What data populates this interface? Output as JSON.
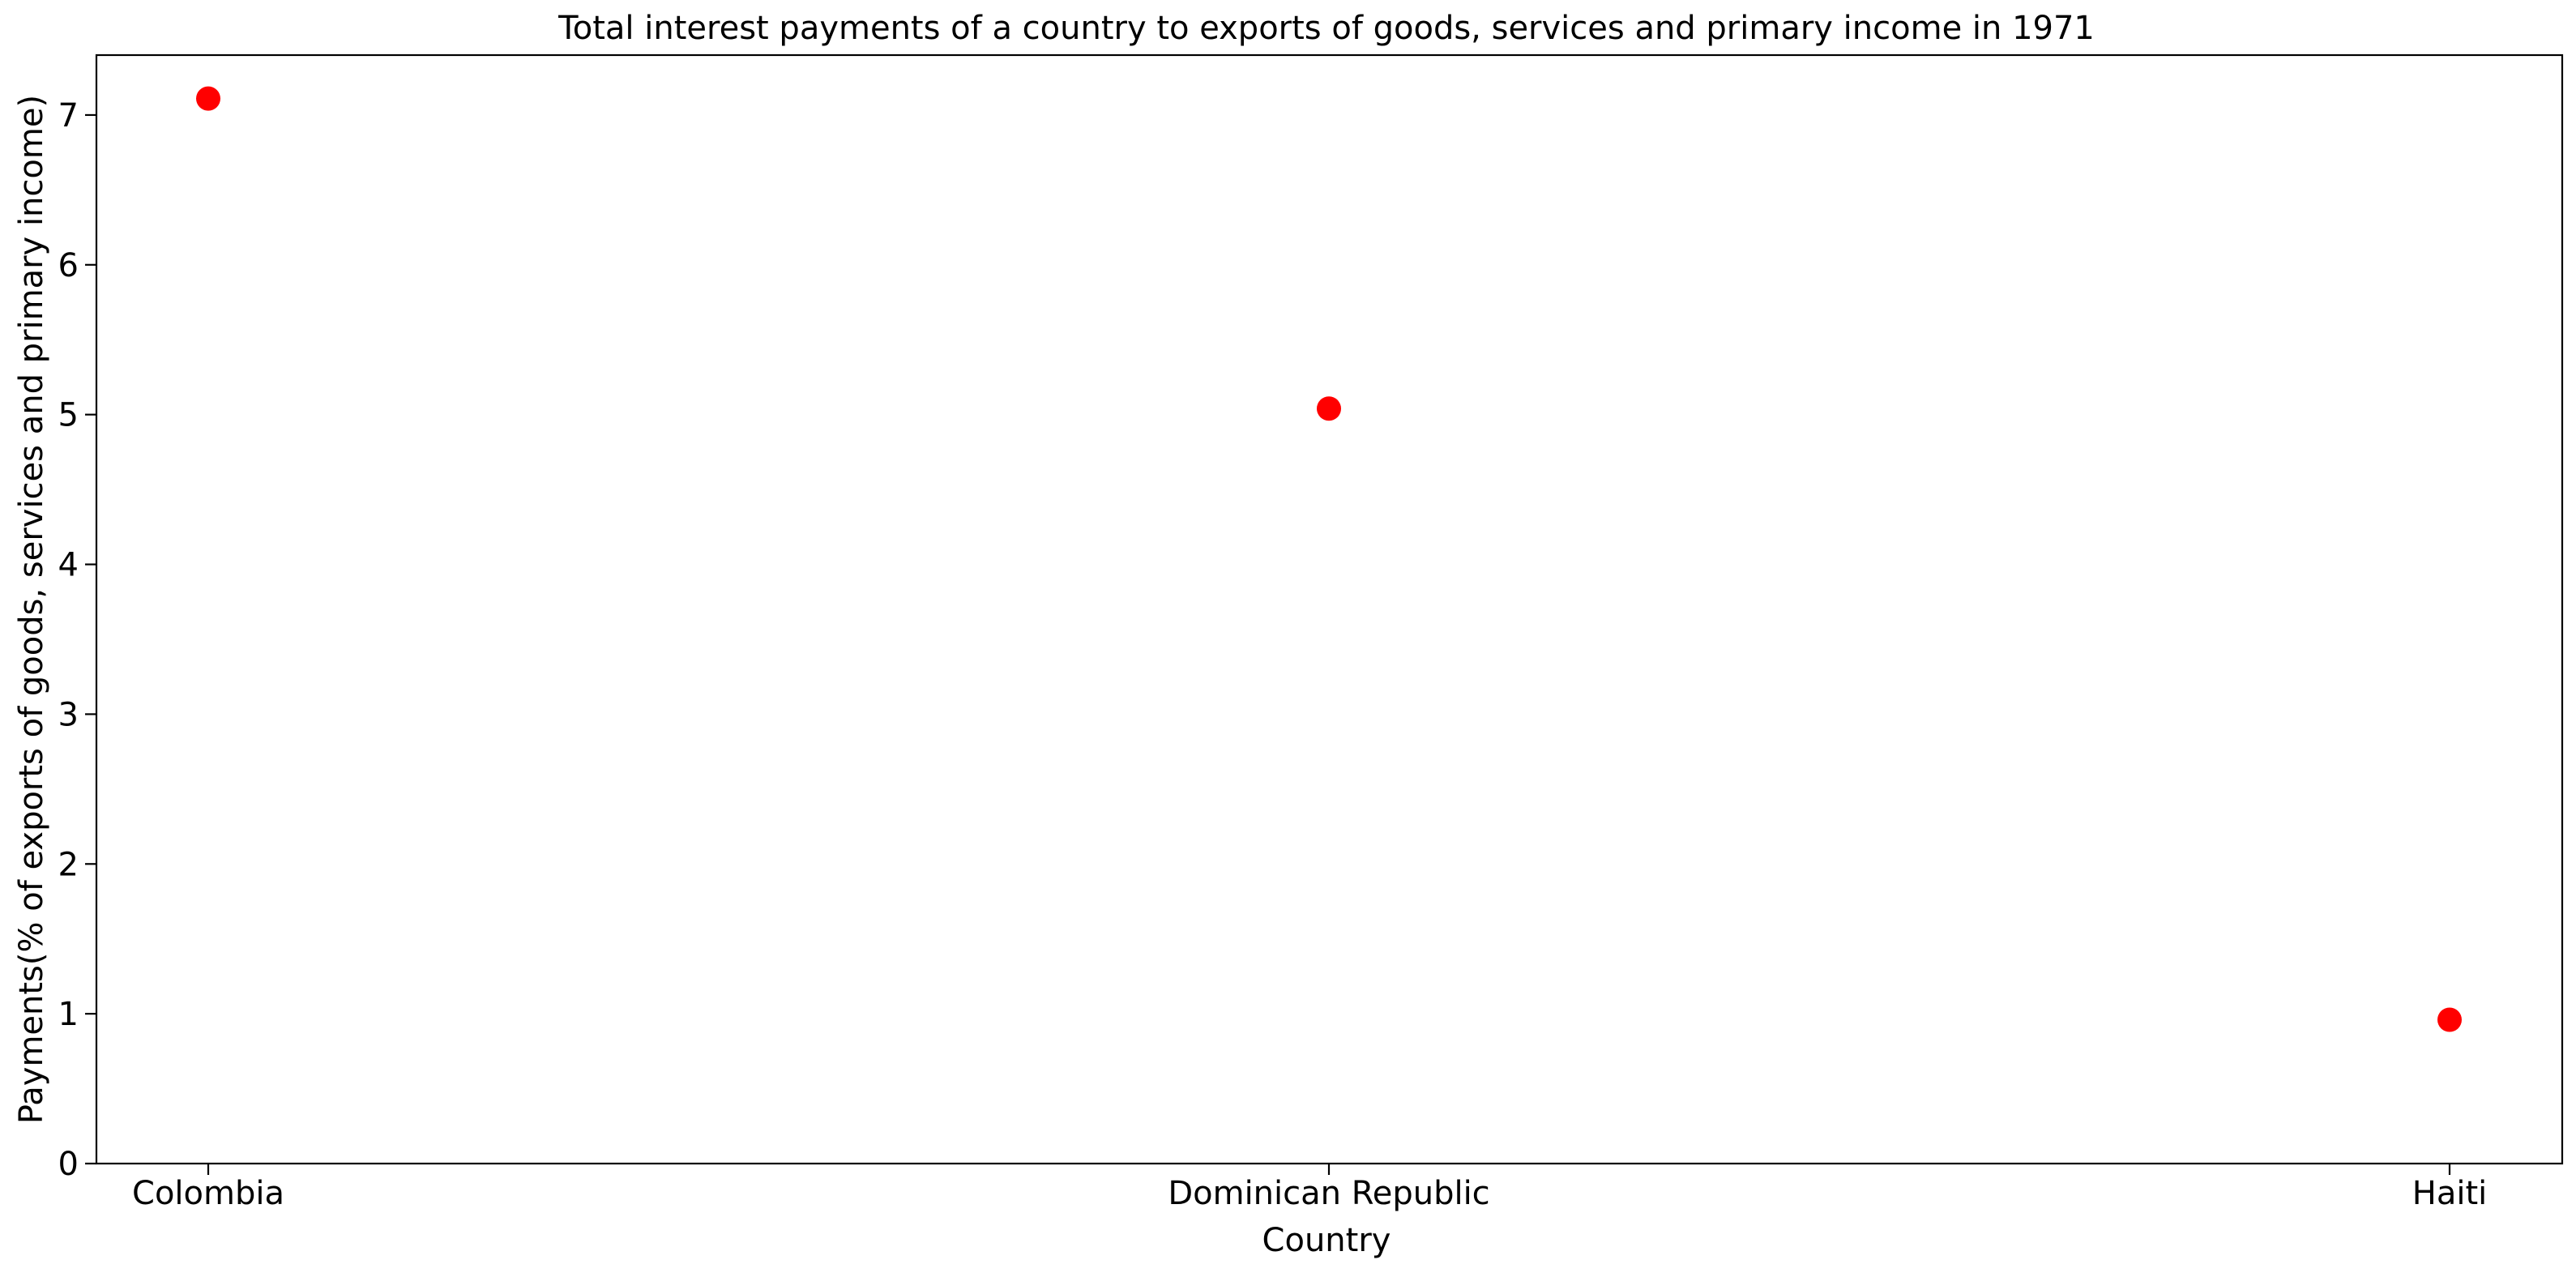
{
  "chart_data": {
    "type": "scatter",
    "title": "Total interest payments of a country to exports of goods, services and primary income in 1971",
    "xlabel": "Country",
    "ylabel": "Payments(% of exports of goods, services and primary income)",
    "categories": [
      "Colombia",
      "Dominican Republic",
      "Haiti"
    ],
    "series": [
      {
        "values": [
          7.11,
          5.04,
          0.96
        ],
        "color": "#ff0000"
      }
    ],
    "ylim": [
      0,
      7.4
    ],
    "yticks": [
      0,
      1,
      2,
      3,
      4,
      5,
      6,
      7
    ],
    "grid": false,
    "legend": "none"
  }
}
